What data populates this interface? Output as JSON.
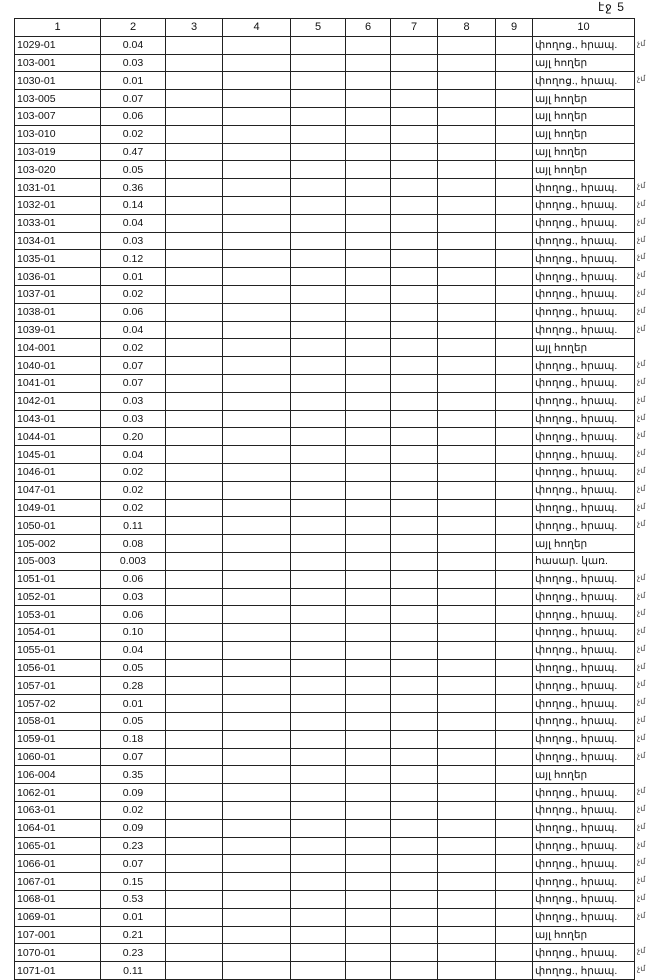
{
  "page_label": "էջ 5",
  "columns": [
    "1",
    "2",
    "3",
    "4",
    "5",
    "6",
    "7",
    "8",
    "9",
    "10"
  ],
  "margin_mark": "չմ",
  "rows": [
    [
      "1029-01",
      "0.04",
      "փողոց., հրապ."
    ],
    [
      "103-001",
      "0.03",
      "այլ հողեր"
    ],
    [
      "1030-01",
      "0.01",
      "փողոց., հրապ."
    ],
    [
      "103-005",
      "0.07",
      "այլ հողեր"
    ],
    [
      "103-007",
      "0.06",
      "այլ հողեր"
    ],
    [
      "103-010",
      "0.02",
      "այլ հողեր"
    ],
    [
      "103-019",
      "0.47",
      "այլ հողեր"
    ],
    [
      "103-020",
      "0.05",
      "այլ հողեր"
    ],
    [
      "1031-01",
      "0.36",
      "փողոց., հրապ."
    ],
    [
      "1032-01",
      "0.14",
      "փողոց., հրապ."
    ],
    [
      "1033-01",
      "0.04",
      "փողոց., հրապ."
    ],
    [
      "1034-01",
      "0.03",
      "փողոց., հրապ."
    ],
    [
      "1035-01",
      "0.12",
      "փողոց., հրապ."
    ],
    [
      "1036-01",
      "0.01",
      "փողոց., հրապ."
    ],
    [
      "1037-01",
      "0.02",
      "փողոց., հրապ."
    ],
    [
      "1038-01",
      "0.06",
      "փողոց., հրապ."
    ],
    [
      "1039-01",
      "0.04",
      "փողոց., հրապ."
    ],
    [
      "104-001",
      "0.02",
      "այլ հողեր"
    ],
    [
      "1040-01",
      "0.07",
      "փողոց., հրապ."
    ],
    [
      "1041-01",
      "0.07",
      "փողոց., հրապ."
    ],
    [
      "1042-01",
      "0.03",
      "փողոց., հրապ."
    ],
    [
      "1043-01",
      "0.03",
      "փողոց., հրապ."
    ],
    [
      "1044-01",
      "0.20",
      "փողոց., հրապ."
    ],
    [
      "1045-01",
      "0.04",
      "փողոց., հրապ."
    ],
    [
      "1046-01",
      "0.02",
      "փողոց., հրապ."
    ],
    [
      "1047-01",
      "0.02",
      "փողոց., հրապ."
    ],
    [
      "1049-01",
      "0.02",
      "փողոց., հրապ."
    ],
    [
      "1050-01",
      "0.11",
      "փողոց., հրապ."
    ],
    [
      "105-002",
      "0.08",
      "այլ հողեր"
    ],
    [
      "105-003",
      "0.003",
      "հասար. կառ."
    ],
    [
      "1051-01",
      "0.06",
      "փողոց., հրապ."
    ],
    [
      "1052-01",
      "0.03",
      "փողոց., հրապ."
    ],
    [
      "1053-01",
      "0.06",
      "փողոց., հրապ."
    ],
    [
      "1054-01",
      "0.10",
      "փողոց., հրապ."
    ],
    [
      "1055-01",
      "0.04",
      "փողոց., հրապ."
    ],
    [
      "1056-01",
      "0.05",
      "փողոց., հրապ."
    ],
    [
      "1057-01",
      "0.28",
      "փողոց., հրապ."
    ],
    [
      "1057-02",
      "0.01",
      "փողոց., հրապ."
    ],
    [
      "1058-01",
      "0.05",
      "փողոց., հրապ."
    ],
    [
      "1059-01",
      "0.18",
      "փողոց., հրապ."
    ],
    [
      "1060-01",
      "0.07",
      "փողոց., հրապ."
    ],
    [
      "106-004",
      "0.35",
      "այլ հողեր"
    ],
    [
      "1062-01",
      "0.09",
      "փողոց., հրապ."
    ],
    [
      "1063-01",
      "0.02",
      "փողոց., հրապ."
    ],
    [
      "1064-01",
      "0.09",
      "փողոց., հրապ."
    ],
    [
      "1065-01",
      "0.23",
      "փողոց., հրապ."
    ],
    [
      "1066-01",
      "0.07",
      "փողոց., հրապ."
    ],
    [
      "1067-01",
      "0.15",
      "փողոց., հրապ."
    ],
    [
      "1068-01",
      "0.53",
      "փողոց., հրապ."
    ],
    [
      "1069-01",
      "0.01",
      "փողոց., հրապ."
    ],
    [
      "107-001",
      "0.21",
      "այլ հողեր"
    ],
    [
      "1070-01",
      "0.23",
      "փողոց., հրապ."
    ],
    [
      "1071-01",
      "0.11",
      "փողոց., հրապ."
    ]
  ]
}
